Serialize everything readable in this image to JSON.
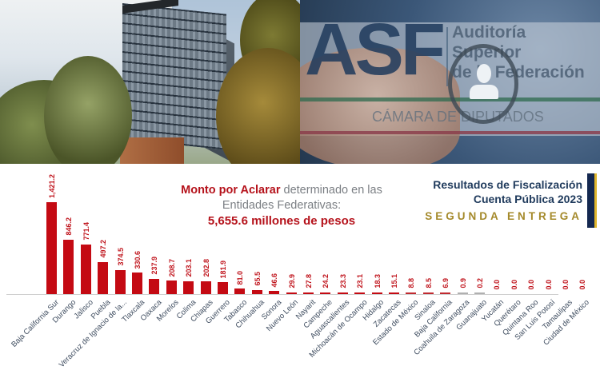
{
  "banner": {
    "left_photo_alt": "ASF headquarters building among trees",
    "logo": {
      "acronym": "ASF",
      "name_lines": [
        "Auditoría",
        "Superior",
        "de la Federación"
      ],
      "subtitle": "CÁMARA DE DIPUTADOS"
    }
  },
  "headline": {
    "highlight": "Monto por Aclarar",
    "rest_line1": " determinado en las",
    "line2": "Entidades Federativas:",
    "total": "5,655.6 millones de pesos"
  },
  "report_title": {
    "line1": "Resultados de Fiscalización",
    "line2": "Cuenta Pública 2023",
    "line3": "SEGUNDA ENTREGA"
  },
  "colors": {
    "bar": "#c40a13",
    "label": "#c0151d",
    "navy": "#1f3a5c",
    "gold": "#a4892a"
  },
  "chart_data": {
    "type": "bar",
    "title": "Monto por Aclarar determinado en las Entidades Federativas: 5,655.6 millones de pesos",
    "xlabel": "",
    "ylabel": "Millones de pesos",
    "ylim": [
      0,
      1500
    ],
    "grid": false,
    "legend": "none",
    "categories": [
      "Baja California Sur",
      "Durango",
      "Jalisco",
      "Puebla",
      "Veracruz de Ignacio de la...",
      "Tlaxcala",
      "Oaxaca",
      "Morelos",
      "Colima",
      "Chiapas",
      "Guerrero",
      "Tabasco",
      "Chihuahua",
      "Sonora",
      "Nuevo León",
      "Nayarit",
      "Campeche",
      "Aguascalientes",
      "Michoacán de Ocampo",
      "Hidalgo",
      "Zacatecas",
      "Estado de México",
      "Sinaloa",
      "Baja California",
      "Coahuila de Zaragoza",
      "Guanajuato",
      "Yucatán",
      "Querétaro",
      "Quintana Roo",
      "San Luis Potosí",
      "Tamaulipas",
      "Ciudad de México"
    ],
    "values": [
      1421.2,
      846.2,
      771.4,
      497.2,
      374.5,
      330.6,
      237.9,
      208.7,
      203.1,
      202.8,
      181.9,
      81.0,
      65.5,
      46.6,
      29.9,
      27.8,
      24.2,
      23.3,
      23.1,
      18.3,
      15.1,
      8.8,
      8.5,
      6.9,
      0.9,
      0.2,
      0.0,
      0.0,
      0.0,
      0.0,
      0.0,
      0.0
    ],
    "value_labels": [
      "1,421.2",
      "846.2",
      "771.4",
      "497.2",
      "374.5",
      "330.6",
      "237.9",
      "208.7",
      "203.1",
      "202.8",
      "181.9",
      "81.0",
      "65.5",
      "46.6",
      "29.9",
      "27.8",
      "24.2",
      "23.3",
      "23.1",
      "18.3",
      "15.1",
      "8.8",
      "8.5",
      "6.9",
      "0.9",
      "0.2",
      "0.0",
      "0.0",
      "0.0",
      "0.0",
      "0.0",
      "0.0"
    ],
    "total": "5,655.6"
  }
}
